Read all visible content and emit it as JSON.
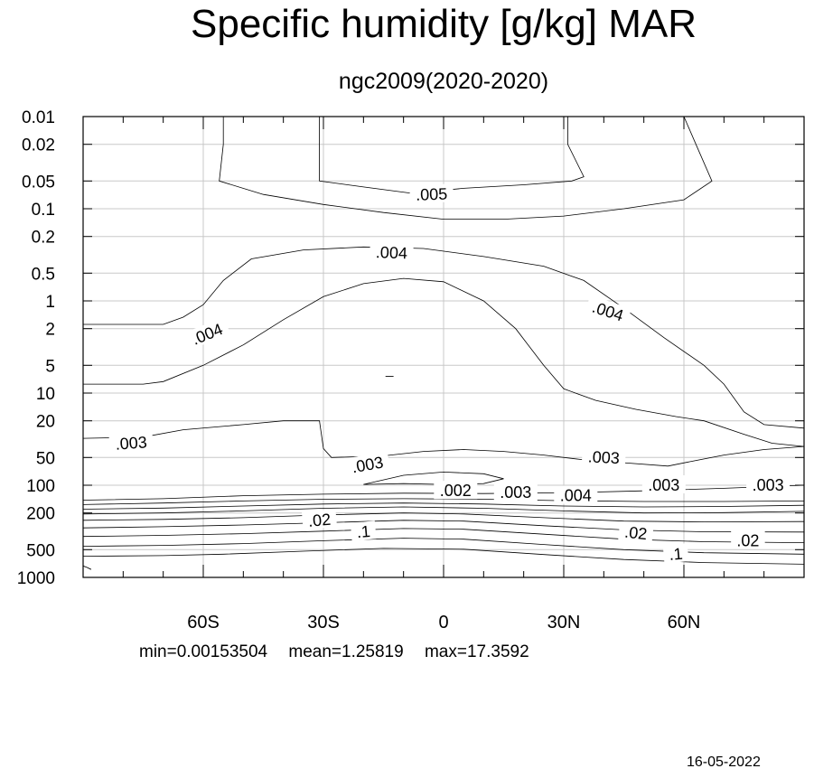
{
  "title": "Specific humidity [g/kg] MAR",
  "subtitle": "ngc2009(2020-2020)",
  "stats": {
    "min": "min=0.00153504",
    "mean": "mean=1.25819",
    "max": "max=17.3592"
  },
  "date": "16-05-2022",
  "chart_data": {
    "type": "contour",
    "title": "Specific humidity [g/kg] MAR",
    "subtitle": "ngc2009(2020-2020)",
    "x_range": [
      -90,
      90
    ],
    "x_ticks": [
      {
        "value": -60,
        "label": "60S"
      },
      {
        "value": -30,
        "label": "30S"
      },
      {
        "value": 0,
        "label": "0"
      },
      {
        "value": 30,
        "label": "30N"
      },
      {
        "value": 60,
        "label": "60N"
      }
    ],
    "x_minor_step": 10,
    "y_scale": "log",
    "y_inverted": true,
    "y_range": [
      0.01,
      1000
    ],
    "y_ticks": [
      "0.01",
      "0.02",
      "0.05",
      "0.1",
      "0.2",
      "0.5",
      "1",
      "2",
      "5",
      "10",
      "20",
      "50",
      "100",
      "200",
      "500",
      "1000"
    ],
    "grid": true,
    "contour_labels": [
      {
        "text": ".005",
        "lat": -3,
        "p": 0.07,
        "angle": -2
      },
      {
        "text": ".004",
        "lat": -13,
        "p": 0.3,
        "angle": 2
      },
      {
        "text": ".004",
        "lat": 41,
        "p": 1.3,
        "angle": 18
      },
      {
        "text": ".004",
        "lat": -59,
        "p": 2.3,
        "angle": -22
      },
      {
        "text": ".003",
        "lat": -78,
        "p": 35,
        "angle": -4
      },
      {
        "text": ".003",
        "lat": -19,
        "p": 60,
        "angle": -10
      },
      {
        "text": ".003",
        "lat": 40,
        "p": 50,
        "angle": 3
      },
      {
        "text": ".003",
        "lat": 55,
        "p": 100,
        "angle": 0
      },
      {
        "text": ".003",
        "lat": 81,
        "p": 100,
        "angle": 0
      },
      {
        "text": ".002",
        "lat": 3,
        "p": 115,
        "angle": 0
      },
      {
        "text": ".003",
        "lat": 18,
        "p": 120,
        "angle": 0
      },
      {
        "text": ".004",
        "lat": 33,
        "p": 130,
        "angle": 0
      },
      {
        "text": ".02",
        "lat": -31,
        "p": 240,
        "angle": -5
      },
      {
        "text": ".1",
        "lat": -20,
        "p": 320,
        "angle": -5
      },
      {
        "text": ".02",
        "lat": 48,
        "p": 330,
        "angle": 6
      },
      {
        "text": ".02",
        "lat": 76,
        "p": 400,
        "angle": 0
      },
      {
        "text": ".1",
        "lat": 58,
        "p": 560,
        "angle": -5
      }
    ],
    "contours": [
      [
        [
          -55,
          0.01
        ],
        [
          -55,
          0.02
        ],
        [
          -56,
          0.05
        ],
        [
          -45,
          0.07
        ],
        [
          -30,
          0.09
        ],
        [
          -15,
          0.11
        ],
        [
          0,
          0.13
        ],
        [
          15,
          0.13
        ],
        [
          30,
          0.12
        ],
        [
          45,
          0.1
        ],
        [
          60,
          0.08
        ],
        [
          67,
          0.05
        ],
        [
          63,
          0.02
        ],
        [
          60,
          0.01
        ]
      ],
      [
        [
          -31,
          0.01
        ],
        [
          -31,
          0.02
        ],
        [
          -31,
          0.05
        ],
        [
          -20,
          0.058
        ],
        [
          -8,
          0.068
        ],
        [
          5,
          0.06
        ],
        [
          20,
          0.055
        ],
        [
          32,
          0.05
        ],
        [
          35,
          0.045
        ],
        [
          31,
          0.02
        ],
        [
          31,
          0.01
        ]
      ],
      [
        [
          -90,
          1.8
        ],
        [
          -80,
          1.8
        ],
        [
          -70,
          1.8
        ],
        [
          -65,
          1.5
        ],
        [
          -60,
          1.1
        ],
        [
          -55,
          0.6
        ],
        [
          -48,
          0.35
        ],
        [
          -35,
          0.28
        ],
        [
          -20,
          0.26
        ],
        [
          -5,
          0.27
        ],
        [
          10,
          0.33
        ],
        [
          25,
          0.42
        ],
        [
          35,
          0.6
        ],
        [
          45,
          1.2
        ],
        [
          55,
          2.5
        ],
        [
          65,
          5
        ],
        [
          70,
          8
        ],
        [
          75,
          16
        ],
        [
          80,
          22
        ],
        [
          90,
          24
        ]
      ],
      [
        [
          -90,
          8
        ],
        [
          -82,
          8
        ],
        [
          -75,
          8
        ],
        [
          -70,
          7.5
        ],
        [
          -60,
          5
        ],
        [
          -50,
          3
        ],
        [
          -40,
          1.6
        ],
        [
          -30,
          0.9
        ],
        [
          -20,
          0.65
        ],
        [
          -10,
          0.57
        ],
        [
          0,
          0.62
        ],
        [
          10,
          1
        ],
        [
          18,
          2
        ],
        [
          25,
          5
        ],
        [
          30,
          9
        ],
        [
          38,
          12
        ],
        [
          48,
          15
        ],
        [
          58,
          18
        ],
        [
          65,
          20
        ],
        [
          75,
          28
        ],
        [
          82,
          35
        ],
        [
          90,
          38
        ]
      ],
      [
        [
          -90,
          31
        ],
        [
          -75,
          30
        ],
        [
          -65,
          25
        ],
        [
          -50,
          22
        ],
        [
          -40,
          20
        ],
        [
          -31,
          20
        ],
        [
          -30,
          40
        ],
        [
          -28,
          50
        ],
        [
          -15,
          48
        ],
        [
          -5,
          43
        ],
        [
          5,
          41
        ],
        [
          15,
          43
        ],
        [
          25,
          47
        ],
        [
          35,
          53
        ],
        [
          45,
          57
        ],
        [
          56,
          62
        ],
        [
          62,
          55
        ],
        [
          70,
          47
        ],
        [
          80,
          41
        ],
        [
          90,
          38
        ]
      ],
      [
        [
          -20,
          98
        ],
        [
          -10,
          78
        ],
        [
          0,
          72
        ],
        [
          10,
          75
        ],
        [
          15,
          85
        ],
        [
          10,
          96
        ],
        [
          0,
          98
        ],
        [
          -10,
          96
        ],
        [
          -20,
          98
        ]
      ],
      [
        [
          -90,
          145
        ],
        [
          -70,
          140
        ],
        [
          -50,
          130
        ],
        [
          -30,
          125
        ],
        [
          -10,
          122
        ],
        [
          10,
          123
        ],
        [
          30,
          121
        ],
        [
          50,
          115
        ],
        [
          70,
          108
        ],
        [
          90,
          100
        ]
      ],
      [
        [
          -90,
          162
        ],
        [
          -70,
          156
        ],
        [
          -50,
          148
        ],
        [
          -30,
          142
        ],
        [
          -10,
          140
        ],
        [
          10,
          142
        ],
        [
          30,
          147
        ],
        [
          50,
          150
        ],
        [
          70,
          150
        ],
        [
          90,
          148
        ]
      ],
      [
        [
          -90,
          182
        ],
        [
          -70,
          177
        ],
        [
          -50,
          168
        ],
        [
          -30,
          160
        ],
        [
          -10,
          156
        ],
        [
          10,
          160
        ],
        [
          30,
          168
        ],
        [
          50,
          172
        ],
        [
          70,
          170
        ],
        [
          90,
          165
        ]
      ],
      [
        [
          -90,
          205
        ],
        [
          -70,
          200
        ],
        [
          -50,
          190
        ],
        [
          -30,
          178
        ],
        [
          -10,
          172
        ],
        [
          10,
          178
        ],
        [
          30,
          190
        ],
        [
          50,
          200
        ],
        [
          70,
          198
        ],
        [
          90,
          192
        ]
      ],
      [
        [
          -90,
          240
        ],
        [
          -70,
          235
        ],
        [
          -50,
          225
        ],
        [
          -30,
          210
        ],
        [
          -10,
          200
        ],
        [
          5,
          205
        ],
        [
          25,
          225
        ],
        [
          45,
          245
        ],
        [
          65,
          250
        ],
        [
          90,
          248
        ]
      ],
      [
        [
          -90,
          290
        ],
        [
          -70,
          282
        ],
        [
          -50,
          270
        ],
        [
          -30,
          255
        ],
        [
          -10,
          240
        ],
        [
          5,
          245
        ],
        [
          25,
          275
        ],
        [
          45,
          305
        ],
        [
          65,
          320
        ],
        [
          90,
          322
        ]
      ],
      [
        [
          -90,
          360
        ],
        [
          -70,
          350
        ],
        [
          -50,
          335
        ],
        [
          -30,
          315
        ],
        [
          -10,
          295
        ],
        [
          5,
          300
        ],
        [
          25,
          340
        ],
        [
          45,
          385
        ],
        [
          65,
          410
        ],
        [
          90,
          420
        ]
      ],
      [
        [
          -90,
          460
        ],
        [
          -70,
          450
        ],
        [
          -50,
          430
        ],
        [
          -30,
          400
        ],
        [
          -10,
          375
        ],
        [
          5,
          385
        ],
        [
          25,
          440
        ],
        [
          45,
          500
        ],
        [
          65,
          540
        ],
        [
          90,
          560
        ]
      ],
      [
        [
          -90,
          590
        ],
        [
          -70,
          580
        ],
        [
          -55,
          560
        ],
        [
          -35,
          520
        ],
        [
          -15,
          485
        ],
        [
          5,
          495
        ],
        [
          25,
          565
        ],
        [
          45,
          640
        ],
        [
          65,
          690
        ],
        [
          90,
          720
        ]
      ]
    ],
    "small_segments": [
      [
        [
          -14.5,
          6.6
        ],
        [
          -12.5,
          6.6
        ]
      ],
      [
        [
          -90,
          750
        ],
        [
          -89,
          780
        ],
        [
          -88,
          820
        ]
      ]
    ]
  }
}
